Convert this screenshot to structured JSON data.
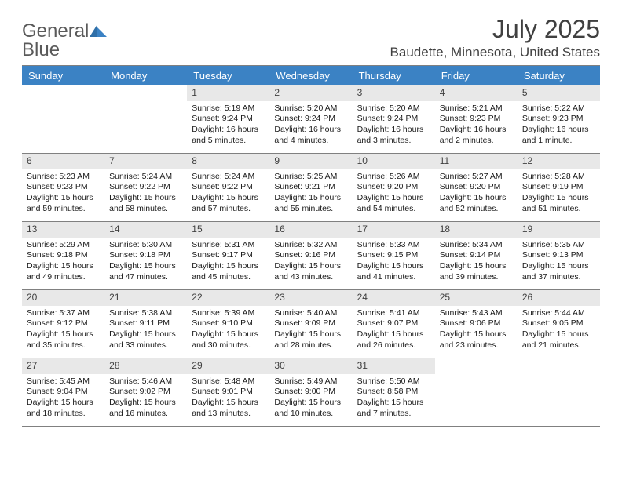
{
  "brand": {
    "general": "General",
    "blue": "Blue"
  },
  "title": "July 2025",
  "location": "Baudette, Minnesota, United States",
  "colors": {
    "header_bg": "#3b82c4",
    "header_text": "#ffffff",
    "daynum_bg": "#e8e8e8",
    "border": "#808080",
    "text": "#1a1a1a"
  },
  "day_labels": [
    "Sunday",
    "Monday",
    "Tuesday",
    "Wednesday",
    "Thursday",
    "Friday",
    "Saturday"
  ],
  "weeks": [
    [
      {
        "n": "",
        "sr": "",
        "ss": "",
        "dl": ""
      },
      {
        "n": "",
        "sr": "",
        "ss": "",
        "dl": ""
      },
      {
        "n": "1",
        "sr": "Sunrise: 5:19 AM",
        "ss": "Sunset: 9:24 PM",
        "dl": "Daylight: 16 hours and 5 minutes."
      },
      {
        "n": "2",
        "sr": "Sunrise: 5:20 AM",
        "ss": "Sunset: 9:24 PM",
        "dl": "Daylight: 16 hours and 4 minutes."
      },
      {
        "n": "3",
        "sr": "Sunrise: 5:20 AM",
        "ss": "Sunset: 9:24 PM",
        "dl": "Daylight: 16 hours and 3 minutes."
      },
      {
        "n": "4",
        "sr": "Sunrise: 5:21 AM",
        "ss": "Sunset: 9:23 PM",
        "dl": "Daylight: 16 hours and 2 minutes."
      },
      {
        "n": "5",
        "sr": "Sunrise: 5:22 AM",
        "ss": "Sunset: 9:23 PM",
        "dl": "Daylight: 16 hours and 1 minute."
      }
    ],
    [
      {
        "n": "6",
        "sr": "Sunrise: 5:23 AM",
        "ss": "Sunset: 9:23 PM",
        "dl": "Daylight: 15 hours and 59 minutes."
      },
      {
        "n": "7",
        "sr": "Sunrise: 5:24 AM",
        "ss": "Sunset: 9:22 PM",
        "dl": "Daylight: 15 hours and 58 minutes."
      },
      {
        "n": "8",
        "sr": "Sunrise: 5:24 AM",
        "ss": "Sunset: 9:22 PM",
        "dl": "Daylight: 15 hours and 57 minutes."
      },
      {
        "n": "9",
        "sr": "Sunrise: 5:25 AM",
        "ss": "Sunset: 9:21 PM",
        "dl": "Daylight: 15 hours and 55 minutes."
      },
      {
        "n": "10",
        "sr": "Sunrise: 5:26 AM",
        "ss": "Sunset: 9:20 PM",
        "dl": "Daylight: 15 hours and 54 minutes."
      },
      {
        "n": "11",
        "sr": "Sunrise: 5:27 AM",
        "ss": "Sunset: 9:20 PM",
        "dl": "Daylight: 15 hours and 52 minutes."
      },
      {
        "n": "12",
        "sr": "Sunrise: 5:28 AM",
        "ss": "Sunset: 9:19 PM",
        "dl": "Daylight: 15 hours and 51 minutes."
      }
    ],
    [
      {
        "n": "13",
        "sr": "Sunrise: 5:29 AM",
        "ss": "Sunset: 9:18 PM",
        "dl": "Daylight: 15 hours and 49 minutes."
      },
      {
        "n": "14",
        "sr": "Sunrise: 5:30 AM",
        "ss": "Sunset: 9:18 PM",
        "dl": "Daylight: 15 hours and 47 minutes."
      },
      {
        "n": "15",
        "sr": "Sunrise: 5:31 AM",
        "ss": "Sunset: 9:17 PM",
        "dl": "Daylight: 15 hours and 45 minutes."
      },
      {
        "n": "16",
        "sr": "Sunrise: 5:32 AM",
        "ss": "Sunset: 9:16 PM",
        "dl": "Daylight: 15 hours and 43 minutes."
      },
      {
        "n": "17",
        "sr": "Sunrise: 5:33 AM",
        "ss": "Sunset: 9:15 PM",
        "dl": "Daylight: 15 hours and 41 minutes."
      },
      {
        "n": "18",
        "sr": "Sunrise: 5:34 AM",
        "ss": "Sunset: 9:14 PM",
        "dl": "Daylight: 15 hours and 39 minutes."
      },
      {
        "n": "19",
        "sr": "Sunrise: 5:35 AM",
        "ss": "Sunset: 9:13 PM",
        "dl": "Daylight: 15 hours and 37 minutes."
      }
    ],
    [
      {
        "n": "20",
        "sr": "Sunrise: 5:37 AM",
        "ss": "Sunset: 9:12 PM",
        "dl": "Daylight: 15 hours and 35 minutes."
      },
      {
        "n": "21",
        "sr": "Sunrise: 5:38 AM",
        "ss": "Sunset: 9:11 PM",
        "dl": "Daylight: 15 hours and 33 minutes."
      },
      {
        "n": "22",
        "sr": "Sunrise: 5:39 AM",
        "ss": "Sunset: 9:10 PM",
        "dl": "Daylight: 15 hours and 30 minutes."
      },
      {
        "n": "23",
        "sr": "Sunrise: 5:40 AM",
        "ss": "Sunset: 9:09 PM",
        "dl": "Daylight: 15 hours and 28 minutes."
      },
      {
        "n": "24",
        "sr": "Sunrise: 5:41 AM",
        "ss": "Sunset: 9:07 PM",
        "dl": "Daylight: 15 hours and 26 minutes."
      },
      {
        "n": "25",
        "sr": "Sunrise: 5:43 AM",
        "ss": "Sunset: 9:06 PM",
        "dl": "Daylight: 15 hours and 23 minutes."
      },
      {
        "n": "26",
        "sr": "Sunrise: 5:44 AM",
        "ss": "Sunset: 9:05 PM",
        "dl": "Daylight: 15 hours and 21 minutes."
      }
    ],
    [
      {
        "n": "27",
        "sr": "Sunrise: 5:45 AM",
        "ss": "Sunset: 9:04 PM",
        "dl": "Daylight: 15 hours and 18 minutes."
      },
      {
        "n": "28",
        "sr": "Sunrise: 5:46 AM",
        "ss": "Sunset: 9:02 PM",
        "dl": "Daylight: 15 hours and 16 minutes."
      },
      {
        "n": "29",
        "sr": "Sunrise: 5:48 AM",
        "ss": "Sunset: 9:01 PM",
        "dl": "Daylight: 15 hours and 13 minutes."
      },
      {
        "n": "30",
        "sr": "Sunrise: 5:49 AM",
        "ss": "Sunset: 9:00 PM",
        "dl": "Daylight: 15 hours and 10 minutes."
      },
      {
        "n": "31",
        "sr": "Sunrise: 5:50 AM",
        "ss": "Sunset: 8:58 PM",
        "dl": "Daylight: 15 hours and 7 minutes."
      },
      {
        "n": "",
        "sr": "",
        "ss": "",
        "dl": ""
      },
      {
        "n": "",
        "sr": "",
        "ss": "",
        "dl": ""
      }
    ]
  ]
}
